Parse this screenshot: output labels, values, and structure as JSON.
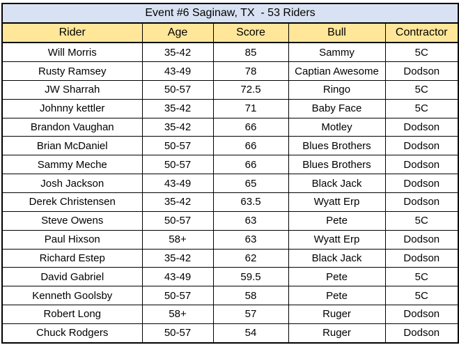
{
  "table": {
    "title": "Event #6 Saginaw, TX  - 53 Riders",
    "headers": [
      "Rider",
      "Age",
      "Score",
      "Bull",
      "Contractor"
    ],
    "rows": [
      [
        "Will Morris",
        "35-42",
        "85",
        "Sammy",
        "5C"
      ],
      [
        "Rusty Ramsey",
        "43-49",
        "78",
        "Captian Awesome",
        "Dodson"
      ],
      [
        "JW Sharrah",
        "50-57",
        "72.5",
        "Ringo",
        "5C"
      ],
      [
        "Johnny kettler",
        "35-42",
        "71",
        "Baby Face",
        "5C"
      ],
      [
        "Brandon Vaughan",
        "35-42",
        "66",
        "Motley",
        "Dodson"
      ],
      [
        "Brian McDaniel",
        "50-57",
        "66",
        "Blues Brothers",
        "Dodson"
      ],
      [
        "Sammy Meche",
        "50-57",
        "66",
        "Blues Brothers",
        "Dodson"
      ],
      [
        "Josh Jackson",
        "43-49",
        "65",
        "Black Jack",
        "Dodson"
      ],
      [
        "Derek Christensen",
        "35-42",
        "63.5",
        "Wyatt Erp",
        "Dodson"
      ],
      [
        "Steve Owens",
        "50-57",
        "63",
        "Pete",
        "5C"
      ],
      [
        "Paul Hixson",
        "58+",
        "63",
        "Wyatt Erp",
        "Dodson"
      ],
      [
        "Richard Estep",
        "35-42",
        "62",
        "Black Jack",
        "Dodson"
      ],
      [
        "David Gabriel",
        "43-49",
        "59.5",
        "Pete",
        "5C"
      ],
      [
        "Kenneth Goolsby",
        "50-57",
        "58",
        "Pete",
        "5C"
      ],
      [
        "Robert Long",
        "58+",
        "57",
        "Ruger",
        "Dodson"
      ],
      [
        "Chuck Rodgers",
        "50-57",
        "54",
        "Ruger",
        "Dodson"
      ]
    ]
  },
  "colors": {
    "title_bg": "#D9E2F2",
    "header_bg": "#FFE699",
    "border": "#000000",
    "text": "#000000"
  }
}
